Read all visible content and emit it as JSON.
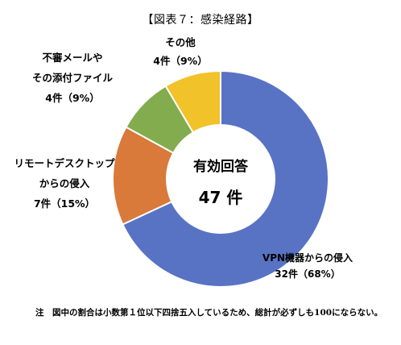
{
  "title": "【図表７：感染経路】",
  "note": "注　図中の割合は小数第１位以下四捨五入しているため、総計が必ずしも100にならない。",
  "chart_data": {
    "type": "pie",
    "donut": true,
    "center_title": "有効回答",
    "center_value": "47 件",
    "slices": [
      {
        "label": "VPN機器からの侵入",
        "value": 32,
        "percent": 68,
        "value_text": "32件（68%）",
        "color": "#5873C4"
      },
      {
        "label": "リモートデスクトップからの侵入",
        "value": 7,
        "percent": 15,
        "value_text": "7件（15%）",
        "color": "#D9793A"
      },
      {
        "label": "不審メールやその添付ファイル",
        "value": 4,
        "percent": 9,
        "value_text": "4件（9%）",
        "color": "#83AC4E"
      },
      {
        "label": "その他",
        "value": 4,
        "percent": 9,
        "value_text": "4件（9%）",
        "color": "#F2C22A"
      }
    ],
    "labels": [
      {
        "lines": [
          "VPN機器からの侵入",
          "32件（68%）"
        ]
      },
      {
        "lines": [
          "リモートデスクトップ",
          "からの侵入",
          "7件（15%）"
        ]
      },
      {
        "lines": [
          "不審メールや",
          "その添付ファイル",
          "4件（9%）"
        ]
      },
      {
        "lines": [
          "その他",
          "4件（9%）"
        ]
      }
    ]
  }
}
